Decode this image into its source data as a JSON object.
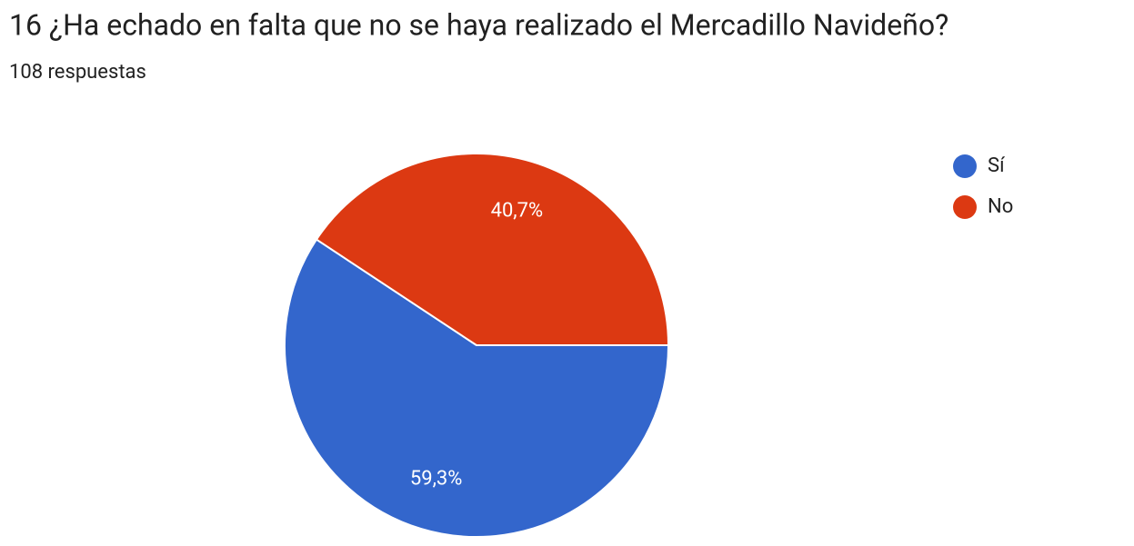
{
  "chart_data": {
    "type": "pie",
    "title": "16 ¿Ha echado en falta que no se haya realizado el Mercadillo Navideño?",
    "subtitle": "108 respuestas",
    "categories": [
      "Sí",
      "No"
    ],
    "values": [
      59.3,
      40.7
    ],
    "value_labels": [
      "59,3%",
      "40,7%"
    ],
    "colors": [
      "#3366cc",
      "#dc3912"
    ],
    "legend": "top-right"
  }
}
